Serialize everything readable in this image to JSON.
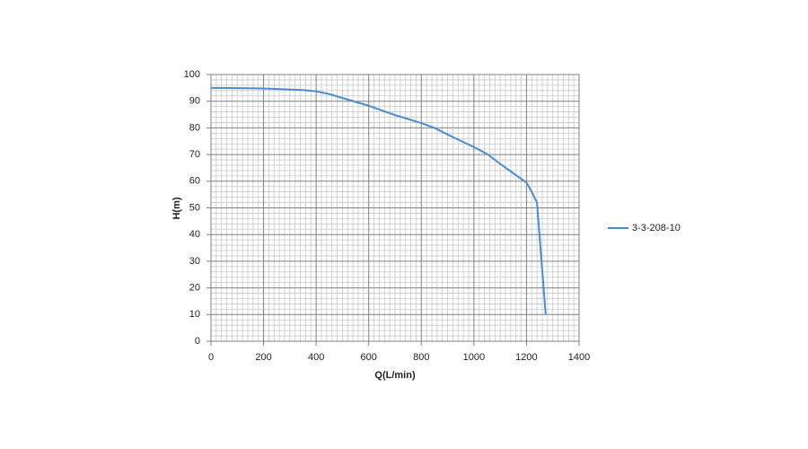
{
  "chart_data": {
    "type": "line",
    "x_label": "Q(L/min)",
    "y_label": "H(m)",
    "series": [
      {
        "name": "3-3-208-10",
        "color": "#4a8ccc",
        "x": [
          0,
          200,
          350,
          400,
          450,
          500,
          600,
          700,
          800,
          850,
          900,
          1000,
          1050,
          1100,
          1150,
          1200,
          1220,
          1240,
          1273
        ],
        "values": [
          95,
          94.8,
          94.2,
          93.7,
          92.7,
          91.2,
          88.3,
          84.8,
          81.8,
          80,
          77.5,
          72.8,
          70.2,
          66.5,
          63,
          59.5,
          56,
          52,
          10
        ]
      }
    ],
    "xlim": [
      0,
      1400
    ],
    "xticks": [
      0,
      200,
      400,
      600,
      800,
      1000,
      1200,
      1400
    ],
    "ylim": [
      0,
      100
    ],
    "yticks": [
      0,
      10,
      20,
      30,
      40,
      50,
      60,
      70,
      80,
      90,
      100
    ],
    "grid": true,
    "minor_grid_divisions": [
      10,
      5
    ],
    "legend": "right"
  }
}
